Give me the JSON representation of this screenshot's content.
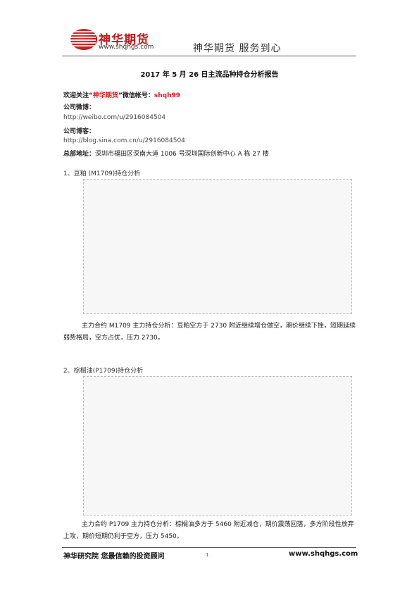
{
  "header": {
    "brand": "神华期货",
    "url": "www.shqhgs.com",
    "slogan": "神华期货   服务到心"
  },
  "report_title": "2017 年 5 月 26 日主流品种持仓分析报告",
  "info": {
    "wechat_prefix": "欢迎关注“",
    "wechat_brand": "神华期货",
    "wechat_mid": "”微信帐号：",
    "wechat_id": "shqh99",
    "weibo_label": "公司微博：",
    "weibo_url": "http://weibo.com/u/2916084504",
    "blog_label": "公司博客：",
    "blog_url": "http://blog.sina.com.cn/u/2916084504",
    "address_label": "总部地址：",
    "address": "深圳市福田区深南大道 1006 号深圳国际创新中心 A 栋 27 楼"
  },
  "section1": {
    "heading": "1、豆粕 (M1709)持仓分析",
    "analysis": "主力合约 M1709 主力持仓分析：豆粕空方于 2730 附近继续增仓做空，期价继续下挫，短期延续弱势格局，空方占优，压力 2730。"
  },
  "section2": {
    "heading": "2、棕榈油(P1709)持仓分析",
    "analysis": "主力合约 P1709 主力持仓分析：棕榈油多方于 5460 附近减仓，期价震荡回落，多方阶段性放弃上攻，期价短期仍利于空方，压力 5450。"
  },
  "footer": {
    "left": "神华研究院   您最信赖的投资顾问",
    "page": "1",
    "right": "www.shqhgs.com"
  }
}
